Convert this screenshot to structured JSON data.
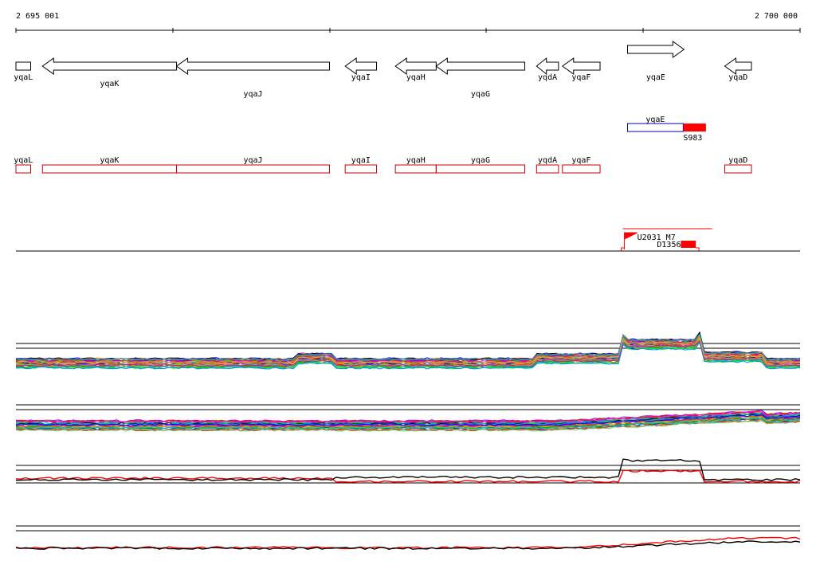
{
  "coordinates": {
    "start_label": "2 695 001",
    "end_label": "2 700 000",
    "start": 2695001,
    "end": 2700000
  },
  "genes": [
    {
      "name": "yqaL",
      "start": 2695001,
      "end": 2695095,
      "strand": "-"
    },
    {
      "name": "yqaK",
      "start": 2695170,
      "end": 2696025,
      "strand": "-"
    },
    {
      "name": "yqaJ",
      "start": 2696025,
      "end": 2697000,
      "strand": "-"
    },
    {
      "name": "yqaI",
      "start": 2697100,
      "end": 2697300,
      "strand": "-"
    },
    {
      "name": "yqaH",
      "start": 2697420,
      "end": 2697680,
      "strand": "-"
    },
    {
      "name": "yqaG",
      "start": 2697680,
      "end": 2698245,
      "strand": "-"
    },
    {
      "name": "yqdA",
      "start": 2698320,
      "end": 2698460,
      "strand": "-"
    },
    {
      "name": "yqaF",
      "start": 2698485,
      "end": 2698725,
      "strand": "-"
    },
    {
      "name": "yqaE",
      "start": 2698900,
      "end": 2699260,
      "strand": "+"
    },
    {
      "name": "yqaD",
      "start": 2699520,
      "end": 2699690,
      "strand": "-"
    }
  ],
  "transcript": {
    "name": "yqaE",
    "start": 2698900,
    "end": 2699400
  },
  "transcript_end_marker": {
    "name": "S983",
    "start": 2699255,
    "end": 2699400
  },
  "upshift": {
    "upstream_label": "U2031_M7",
    "downstream_label": "D1356",
    "start": 2698870,
    "end": 2699440,
    "down_start": 2699240,
    "down_end": 2699335
  },
  "colors": {
    "gene_fill": "#ffffff",
    "gene_stroke": "#000000",
    "cds_box": "#cc0000",
    "transcript_box": "#0000aa",
    "marker": "#ff0000"
  }
}
